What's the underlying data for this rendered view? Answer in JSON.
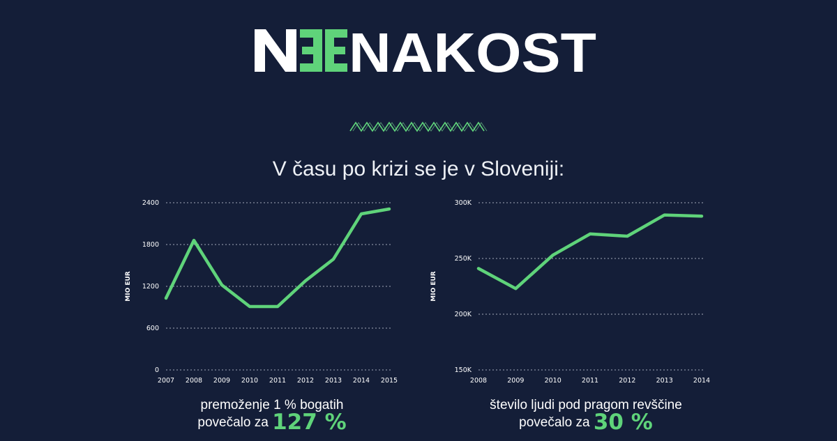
{
  "header": {
    "brand": "NEENAKOST",
    "subtitle": "V času po krizi se je v Sloveniji:"
  },
  "colors": {
    "background": "#141e38",
    "accent": "#5fd37a",
    "text": "#ffffff"
  },
  "chart_data": [
    {
      "type": "line",
      "ylabel": "MIO EUR",
      "x": [
        "2007",
        "2008",
        "2009",
        "2010",
        "2011",
        "2012",
        "2013",
        "2014",
        "2015"
      ],
      "yticks": [
        "0",
        "600",
        "1200",
        "1800",
        "2400"
      ],
      "ylim": [
        0,
        2400
      ],
      "grid": true,
      "series": [
        {
          "values": [
            1030,
            1860,
            1220,
            910,
            910,
            1280,
            1590,
            2240,
            2310
          ]
        }
      ]
    },
    {
      "type": "line",
      "ylabel": "MIO EUR",
      "x": [
        "2008",
        "2009",
        "2010",
        "2011",
        "2012",
        "2013",
        "2014"
      ],
      "yticks": [
        "150K",
        "200K",
        "250K",
        "300K"
      ],
      "ylim": [
        150000,
        300000
      ],
      "grid": true,
      "series": [
        {
          "values": [
            241000,
            223000,
            253000,
            272000,
            270000,
            289000,
            288000
          ]
        }
      ]
    }
  ],
  "captions": [
    {
      "line1": "premoženje 1 % bogatih",
      "line2": "povečalo za",
      "highlight": "127 %"
    },
    {
      "line1": "število ljudi pod pragom revščine",
      "line2": "povečalo za",
      "highlight": "30 %"
    }
  ]
}
